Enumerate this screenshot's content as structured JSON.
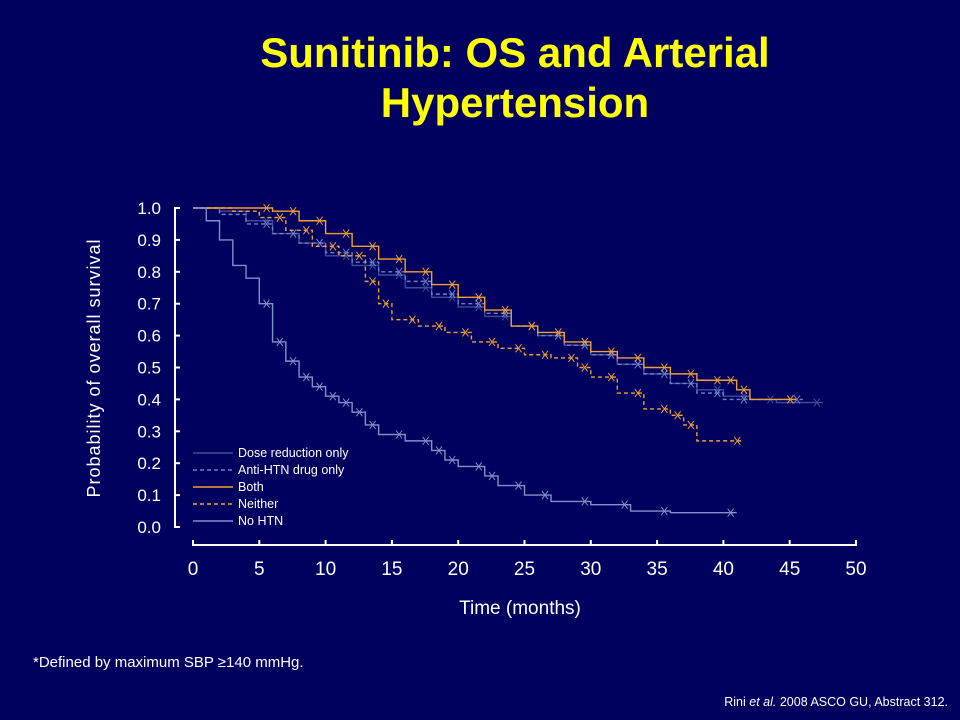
{
  "slide": {
    "title_line1": "Sunitinib: OS and Arterial",
    "title_line2": "Hypertension",
    "footnote": "*Defined by maximum SBP ≥140 mmHg.",
    "citation_author": "Rini",
    "citation_etal": " et al.",
    "citation_rest": " 2008 ASCO GU, Abstract 312."
  },
  "colors": {
    "background": "#00005e",
    "title": "#ffff00",
    "axis": "#ffffff",
    "both": "#f0a030",
    "neither": "#f0a030",
    "dose_reduction": "#3c4c9c",
    "anti_htn": "#7080c0",
    "no_htn": "#8090c8"
  },
  "chart_data": {
    "type": "line",
    "xlabel": "Time (months)",
    "ylabel": "Probability of overall survival",
    "xlim": [
      0,
      50
    ],
    "ylim": [
      0,
      1
    ],
    "xticks": [
      "0",
      "5",
      "10",
      "15",
      "20",
      "25",
      "30",
      "35",
      "40",
      "45",
      "50"
    ],
    "yticks": [
      "0.0",
      "0.1",
      "0.2",
      "0.3",
      "0.4",
      "0.5",
      "0.6",
      "0.7",
      "0.8",
      "0.9",
      "1.0"
    ],
    "legend_position": "bottom-left",
    "series": [
      {
        "name": "Dose reduction only",
        "style": "solid",
        "color": "#3c4c9c",
        "points": [
          [
            0,
            1.0
          ],
          [
            2,
            0.99
          ],
          [
            4,
            0.96
          ],
          [
            6,
            0.92
          ],
          [
            8,
            0.89
          ],
          [
            10,
            0.85
          ],
          [
            12,
            0.82
          ],
          [
            14,
            0.79
          ],
          [
            16,
            0.75
          ],
          [
            18,
            0.72
          ],
          [
            20,
            0.69
          ],
          [
            22,
            0.66
          ],
          [
            24,
            0.63
          ],
          [
            26,
            0.6
          ],
          [
            28,
            0.57
          ],
          [
            30,
            0.54
          ],
          [
            32,
            0.51
          ],
          [
            34,
            0.48
          ],
          [
            36,
            0.45
          ],
          [
            38,
            0.43
          ],
          [
            40,
            0.41
          ],
          [
            42,
            0.4
          ],
          [
            44,
            0.39
          ],
          [
            47.5,
            0.39
          ]
        ]
      },
      {
        "name": "Anti-HTN drug only",
        "style": "dashed",
        "color": "#7080c0",
        "points": [
          [
            0,
            1.0
          ],
          [
            2,
            0.98
          ],
          [
            4,
            0.95
          ],
          [
            6,
            0.92
          ],
          [
            8,
            0.89
          ],
          [
            10,
            0.86
          ],
          [
            12,
            0.83
          ],
          [
            14,
            0.8
          ],
          [
            16,
            0.77
          ],
          [
            18,
            0.73
          ],
          [
            20,
            0.7
          ],
          [
            22,
            0.67
          ],
          [
            24,
            0.63
          ],
          [
            26,
            0.6
          ],
          [
            28,
            0.57
          ],
          [
            30,
            0.54
          ],
          [
            32,
            0.51
          ],
          [
            34,
            0.48
          ],
          [
            36,
            0.45
          ],
          [
            38,
            0.42
          ],
          [
            40,
            0.4
          ],
          [
            42,
            0.4
          ],
          [
            46,
            0.4
          ]
        ]
      },
      {
        "name": "Both",
        "style": "solid",
        "color": "#f0a030",
        "points": [
          [
            0,
            1.0
          ],
          [
            4,
            1.0
          ],
          [
            6,
            0.99
          ],
          [
            8,
            0.96
          ],
          [
            10,
            0.92
          ],
          [
            12,
            0.88
          ],
          [
            14,
            0.84
          ],
          [
            16,
            0.8
          ],
          [
            18,
            0.76
          ],
          [
            20,
            0.72
          ],
          [
            22,
            0.68
          ],
          [
            24,
            0.63
          ],
          [
            26,
            0.61
          ],
          [
            28,
            0.58
          ],
          [
            30,
            0.55
          ],
          [
            32,
            0.53
          ],
          [
            34,
            0.5
          ],
          [
            36,
            0.48
          ],
          [
            38,
            0.46
          ],
          [
            40,
            0.46
          ],
          [
            41,
            0.43
          ],
          [
            42,
            0.4
          ],
          [
            45.5,
            0.4
          ]
        ]
      },
      {
        "name": "Neither",
        "style": "dashed",
        "color": "#f0a030",
        "points": [
          [
            0,
            1.0
          ],
          [
            3,
            0.99
          ],
          [
            5,
            0.97
          ],
          [
            7,
            0.93
          ],
          [
            9,
            0.88
          ],
          [
            11,
            0.85
          ],
          [
            13,
            0.77
          ],
          [
            14,
            0.7
          ],
          [
            15,
            0.65
          ],
          [
            17,
            0.63
          ],
          [
            19,
            0.61
          ],
          [
            21,
            0.58
          ],
          [
            23,
            0.56
          ],
          [
            25,
            0.54
          ],
          [
            27,
            0.53
          ],
          [
            29,
            0.5
          ],
          [
            30,
            0.47
          ],
          [
            32,
            0.42
          ],
          [
            34,
            0.37
          ],
          [
            36,
            0.35
          ],
          [
            37,
            0.32
          ],
          [
            38,
            0.27
          ],
          [
            41.5,
            0.27
          ]
        ]
      },
      {
        "name": "No HTN",
        "style": "solid",
        "color": "#8090c8",
        "points": [
          [
            0,
            1.0
          ],
          [
            1,
            0.96
          ],
          [
            2,
            0.9
          ],
          [
            3,
            0.82
          ],
          [
            4,
            0.78
          ],
          [
            5,
            0.7
          ],
          [
            6,
            0.58
          ],
          [
            7,
            0.52
          ],
          [
            8,
            0.47
          ],
          [
            9,
            0.44
          ],
          [
            10,
            0.41
          ],
          [
            11,
            0.39
          ],
          [
            12,
            0.36
          ],
          [
            13,
            0.32
          ],
          [
            14,
            0.29
          ],
          [
            16,
            0.27
          ],
          [
            18,
            0.24
          ],
          [
            19,
            0.21
          ],
          [
            20,
            0.19
          ],
          [
            22,
            0.16
          ],
          [
            23,
            0.13
          ],
          [
            25,
            0.1
          ],
          [
            27,
            0.08
          ],
          [
            30,
            0.07
          ],
          [
            33,
            0.05
          ],
          [
            36,
            0.045
          ],
          [
            41,
            0.045
          ]
        ]
      }
    ]
  }
}
